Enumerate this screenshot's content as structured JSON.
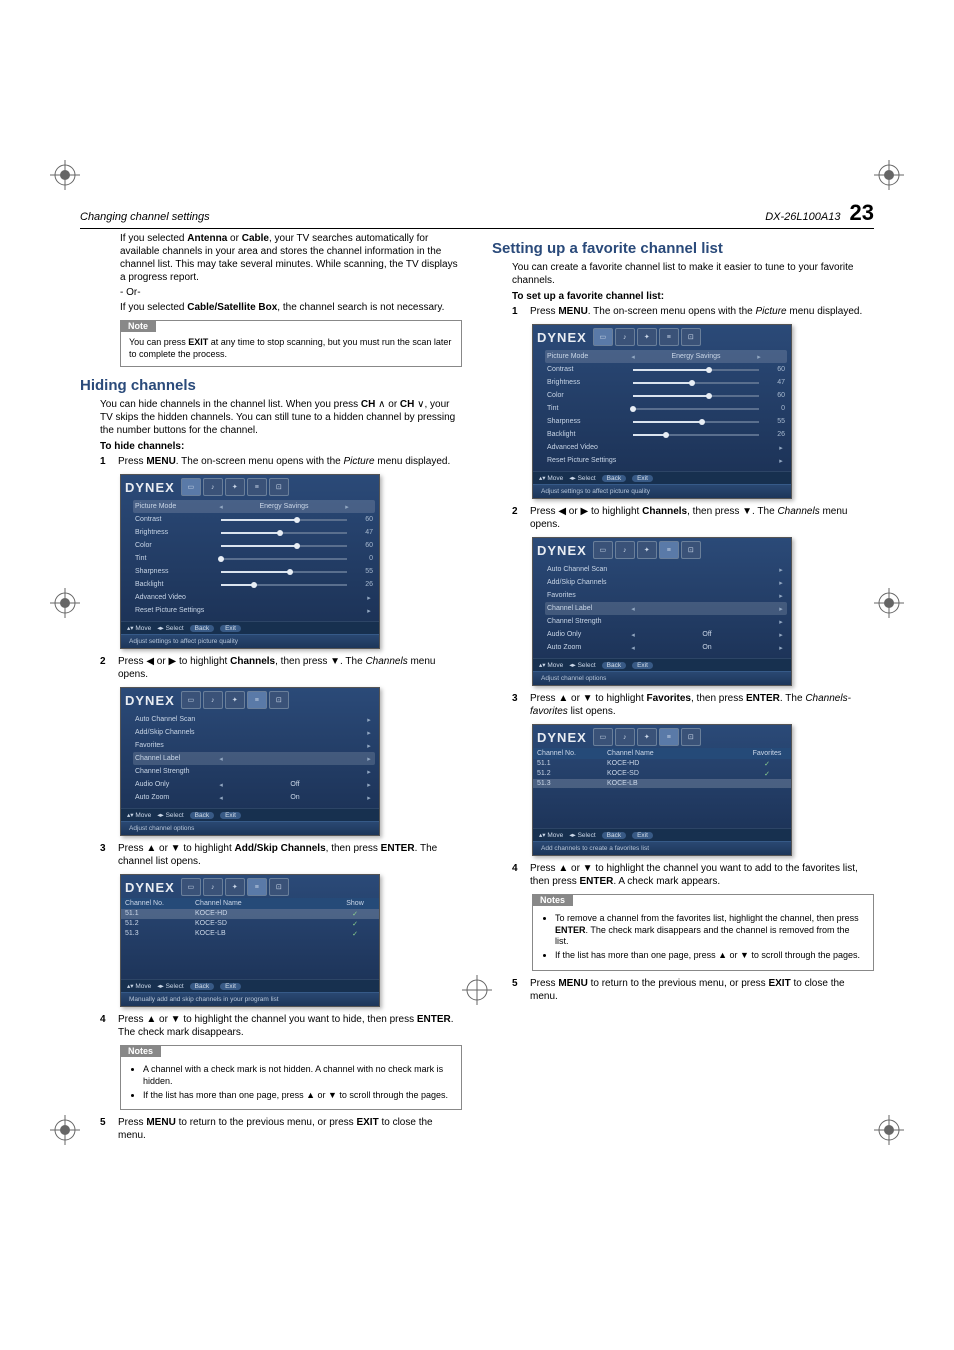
{
  "header": {
    "left": "Changing channel settings",
    "right_model": "DX-26L100A13",
    "page_num": "23"
  },
  "col1": {
    "intro1": "If you selected Antenna or Cable, your TV searches automatically for available channels in your area and stores the channel information in the channel list. This may take several minutes. While scanning, the TV displays a progress report.",
    "or": "- Or-",
    "intro2": "If you selected Cable/Satellite Box, the channel search is not necessary.",
    "note1_tab": "Note",
    "note1_body": "You can press EXIT at any time to stop scanning, but you must run the scan later to complete the process.",
    "h2": "Hiding channels",
    "hide_intro": "You can hide channels in the channel list. When you press CH ∧ or CH ∨, your TV skips the hidden channels. You can still tune to a hidden channel by pressing the number buttons for the channel.",
    "to_hide": "To hide channels:",
    "step1": "Press MENU. The on-screen menu opens with the Picture menu displayed.",
    "step2": "Press ◀ or ▶ to highlight Channels, then press ▼. The Channels menu opens.",
    "step3": "Press ▲ or ▼ to highlight Add/Skip Channels, then press ENTER. The channel list opens.",
    "step4": "Press ▲ or ▼ to highlight the channel you want to hide, then press ENTER. The check mark disappears.",
    "notes_tab": "Notes",
    "notes_b1": "A channel with a check mark is not hidden. A channel with no check mark is hidden.",
    "notes_b2": "If the list has more than one page, press ▲ or ▼ to scroll through the pages.",
    "step5": "Press MENU to return to the previous menu, or press EXIT to close the menu."
  },
  "col2": {
    "h2": "Setting up a favorite channel list",
    "intro": "You can create a favorite channel list to make it easier to tune to your favorite channels.",
    "to_setup": "To set up a favorite channel list:",
    "step1": "Press MENU. The on-screen menu opens with the Picture menu displayed.",
    "step2": "Press ◀ or ▶ to highlight Channels, then press ▼. The Channels menu opens.",
    "step3": "Press ▲ or ▼ to highlight Favorites, then press ENTER. The Channels-favorites list opens.",
    "step4": "Press ▲ or ▼ to highlight the channel you want to add to the favorites list, then press ENTER. A check mark appears.",
    "notes_tab": "Notes",
    "notes_b1": "To remove a channel from the favorites list, highlight the channel, then press ENTER. The check mark disappears and the channel is removed from the list.",
    "notes_b2": "If the list has more than one page, press ▲ or ▼ to scroll through the pages.",
    "step5": "Press MENU to return to the previous menu, or press EXIT to close the menu."
  },
  "tv": {
    "logo": "DYNEX",
    "tabs": [
      "Picture",
      "Audio",
      "Settings",
      "Channels",
      "USB"
    ],
    "picture": {
      "rows": [
        {
          "label": "Picture Mode",
          "type": "select",
          "value": "Energy Savings"
        },
        {
          "label": "Contrast",
          "type": "slider",
          "value": 60
        },
        {
          "label": "Brightness",
          "type": "slider",
          "value": 47
        },
        {
          "label": "Color",
          "type": "slider",
          "value": 60
        },
        {
          "label": "Tint",
          "type": "slider",
          "value": 0
        },
        {
          "label": "Sharpness",
          "type": "slider",
          "value": 55
        },
        {
          "label": "Backlight",
          "type": "slider",
          "value": 26
        },
        {
          "label": "Advanced Video",
          "type": "arrow"
        },
        {
          "label": "Reset Picture Settings",
          "type": "arrow"
        }
      ],
      "footer": "Adjust settings to affect picture quality"
    },
    "channels": {
      "rows": [
        {
          "label": "Auto Channel Scan",
          "type": "arrow"
        },
        {
          "label": "Add/Skip Channels",
          "type": "arrow"
        },
        {
          "label": "Favorites",
          "type": "arrow"
        },
        {
          "label": "Channel Label",
          "type": "arrowsel"
        },
        {
          "label": "Channel Strength",
          "type": "arrow"
        },
        {
          "label": "Audio Only",
          "type": "select",
          "value": "Off"
        },
        {
          "label": "Auto Zoom",
          "type": "select",
          "value": "On"
        }
      ],
      "footer": "Adjust channel options"
    },
    "chanlist": {
      "head": [
        "Channel No.",
        "Channel Name",
        "Show"
      ],
      "rows": [
        [
          "51.1",
          "KOCE-HD",
          "✓"
        ],
        [
          "51.2",
          "KOCE-SD",
          "✓"
        ],
        [
          "51.3",
          "KOCE-LB",
          "✓"
        ]
      ],
      "footer": "Manually add and skip channels in your program list"
    },
    "favlist": {
      "head": [
        "Channel No.",
        "Channel Name",
        "Favorites"
      ],
      "rows": [
        [
          "51.1",
          "KOCE-HD",
          "✓"
        ],
        [
          "51.2",
          "KOCE-SD",
          "✓"
        ],
        [
          "51.3",
          "KOCE-LB",
          ""
        ]
      ],
      "footer": "Add channels to create a favorites list"
    },
    "hint": {
      "move": "▴▾ Move",
      "select": "◂▸ Select",
      "back": "Back",
      "exit": "Exit"
    }
  },
  "colors": {
    "tv_grad_top": "#2b4a78",
    "tv_grad_bot": "#1a2f52",
    "section_color": "#2a4a7a"
  }
}
